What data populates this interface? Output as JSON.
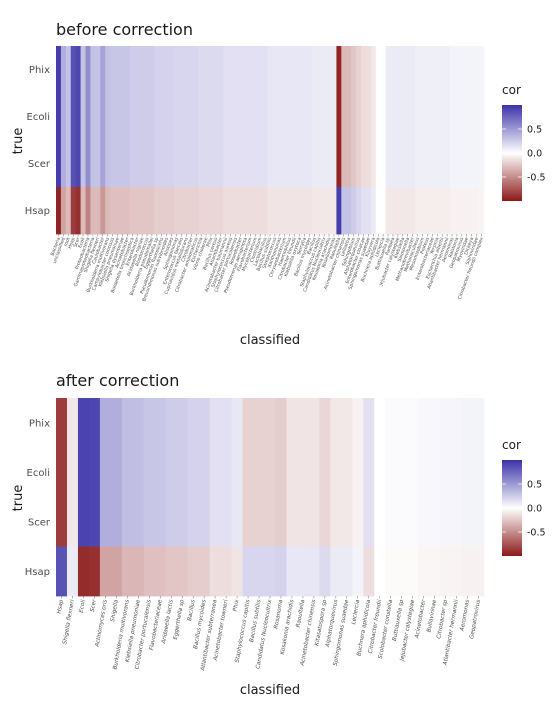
{
  "chart_data": [
    {
      "type": "heatmap",
      "title": "before correction",
      "xlabel": "classified",
      "ylabel": "true",
      "rows": [
        "Phix",
        "Ecoli",
        "Scer",
        "Hsap"
      ],
      "columns": [
        "Bacteria",
        "unclassified",
        "root",
        "Hsap",
        "Scer",
        "Ecoli",
        "Proteobacteria",
        "Gammaproteobacteria",
        "Shigella flexneri",
        "Caulobacter",
        "Burkholderia multivorans",
        "Campylobacter concisus",
        "Klebsiella pneumoniae",
        "Shigella dysenteriae",
        "Acinetobacter",
        "Bordetella bronchiseptica",
        "Enterobacter",
        "Acidaeella nigriae",
        "Rhodococcus",
        "Burkholderia pseudomallei",
        "Eggerthella sp",
        "Pseudomonas fluorescens",
        "Brevundimonas subvibrioides",
        "Alistipes",
        "Sphingomonas",
        "Enterococcus faecalis",
        "Cupriavidus metallidurans",
        "Citrobacter",
        "Citrobacter amalonaticus",
        "Escherichia",
        "Vibrio cholerae",
        "Phix",
        "Bacillus cereus",
        "Atlantibacter",
        "Acinetobacter baumannii",
        "Staphylococcus aureus",
        "Citrobacter portucalensis",
        "Roseobacter",
        "Pseudomonas aeruginosa",
        "Flavobacterium",
        "Mycobacterium",
        "Clostridium",
        "Lactobacillus",
        "Bacillus subtilis",
        "Streptococcus",
        "Xanthomonas",
        "Chryseobacterium",
        "Haemophilus",
        "Citrobacter freundii",
        "Klebsiella oxytoca",
        "Serratia",
        "Bacillus mycoides",
        "Bacillus",
        "Staphylococcus capitis",
        "Candidatus Nucleocultrix",
        "Kosakonia arachidis",
        "Rosellomonas",
        "Raoultella",
        "Acinetobacter chinensis",
        "Lelliottia",
        "Sphingobium",
        "Alphatorquevirus",
        "Enterobacter cloacae",
        "Sphingomonas suaedae",
        "Kluyvera",
        "Buchnera aphidicola",
        "Leclercia",
        "Buttiauxella sp",
        "Pantoea",
        "Jejubacter calystegiae",
        "Klebsiella",
        "Salmonella",
        "Methanobrevibacter",
        "Methanoculleus",
        "Mesorhizobium",
        "Proteus",
        "Enterobacteriaceae",
        "Yersinia",
        "Escherichia albertii",
        "Atlantibacter hermannii",
        "Aeromonas",
        "Ralstonia",
        "Geopatrovirus",
        "Myoviridae",
        "Dickeya",
        "Siphoviridae",
        "Citrobacter freundii complex"
      ],
      "values_note": "correlation per column; row profile shared by Phix, Ecoli, Scer",
      "top_rows_values": [
        0.95,
        0.4,
        0.3,
        0.85,
        0.9,
        0.3,
        0.55,
        0.3,
        0.3,
        0.45,
        0.3,
        0.28,
        0.28,
        0.28,
        0.28,
        0.25,
        0.25,
        0.25,
        0.25,
        0.25,
        0.22,
        0.22,
        0.22,
        0.22,
        0.2,
        0.2,
        0.2,
        0.2,
        0.2,
        0.18,
        0.18,
        0.18,
        0.18,
        0.18,
        0.15,
        0.15,
        0.15,
        0.15,
        0.15,
        0.15,
        0.15,
        0.15,
        0.15,
        0.12,
        0.12,
        0.12,
        0.12,
        0.12,
        0.12,
        0.12,
        0.12,
        0.12,
        0.1,
        0.1,
        0.1,
        0.1,
        0.1,
        -0.95,
        -0.3,
        -0.3,
        -0.25,
        -0.2,
        -0.15,
        -0.15,
        -0.1,
        0.0,
        0.0,
        0.1,
        0.1,
        0.1,
        0.1,
        0.1,
        0.1,
        0.08,
        0.08,
        0.08,
        0.08,
        0.08,
        0.08,
        0.08,
        0.06,
        0.06,
        0.06,
        0.06,
        0.06,
        0.06,
        0.05
      ],
      "hsap_values": [
        -0.95,
        -0.4,
        -0.3,
        -0.85,
        -0.9,
        -0.3,
        -0.55,
        -0.3,
        -0.3,
        -0.45,
        -0.3,
        -0.28,
        -0.28,
        -0.28,
        -0.28,
        -0.25,
        -0.25,
        -0.25,
        -0.25,
        -0.25,
        -0.22,
        -0.22,
        -0.22,
        -0.22,
        -0.2,
        -0.2,
        -0.2,
        -0.2,
        -0.2,
        -0.18,
        -0.18,
        -0.18,
        -0.18,
        -0.18,
        -0.15,
        -0.15,
        -0.15,
        -0.15,
        -0.15,
        -0.15,
        -0.15,
        -0.15,
        -0.15,
        -0.12,
        -0.12,
        -0.12,
        -0.12,
        -0.12,
        -0.12,
        -0.12,
        -0.12,
        -0.12,
        -0.1,
        -0.1,
        -0.1,
        -0.1,
        -0.1,
        0.95,
        0.3,
        0.3,
        0.25,
        0.2,
        0.15,
        0.15,
        0.1,
        0.0,
        0.0,
        -0.1,
        -0.1,
        -0.1,
        -0.1,
        -0.1,
        -0.1,
        -0.08,
        -0.08,
        -0.08,
        -0.08,
        -0.08,
        -0.08,
        -0.08,
        -0.06,
        -0.06,
        -0.06,
        -0.06,
        -0.06,
        -0.06,
        -0.05
      ],
      "legend": {
        "title": "cor",
        "ticks": [
          0.5,
          0.0,
          -0.5
        ],
        "tick_labels": [
          "0.5",
          "0.0",
          "-0.5"
        ],
        "range": [
          -1,
          1
        ],
        "position": "right"
      },
      "colors": {
        "low": "#8b1a1a",
        "mid": "#ffffff",
        "high": "#3b33a8"
      }
    },
    {
      "type": "heatmap",
      "title": "after correction",
      "xlabel": "classified",
      "ylabel": "true",
      "rows": [
        "Phix",
        "Ecoli",
        "Scer",
        "Hsap"
      ],
      "columns": [
        "Hsap",
        "Shigella flexneri",
        "Ecoli",
        "Scer",
        "Actinomyces oris",
        "Shigella",
        "Burkholderia multivorans",
        "Klebsiella pneumoniae",
        "Citrobacter portucalensis",
        "Flavobacteriaceae",
        "Aridaeella lactis",
        "Eggerthella sp",
        "Bacillus",
        "Bacillus mycoides",
        "Atlantibacter subterranea",
        "Acinetobacter towneri",
        "Phix",
        "Staphylococcus capitis",
        "Bacillus subtilis",
        "Candidatus Nucleocultrix",
        "Rosanoma",
        "Kosakonia arachidis",
        "Raoultella",
        "Acinetobacter chinensis",
        "Kitasatospora sp",
        "Alphatorquevirus",
        "Sphingomonas suaedae",
        "Leclercia",
        "Buchnera aphidicola",
        "Citrobacter freundii",
        "Scolobacter constella",
        "Buttiauxella sp",
        "Jejubacter calystegiae",
        "Acinetobacter",
        "Bullavirinae",
        "Citrobacter sp",
        "Atlantibacter hermannii",
        "Aeromonas",
        "Geopatrovirus"
      ],
      "top_rows_values": [
        -0.85,
        -0.1,
        0.92,
        0.9,
        0.4,
        0.4,
        0.32,
        0.32,
        0.28,
        0.28,
        0.25,
        0.25,
        0.22,
        0.22,
        0.15,
        0.15,
        0.12,
        -0.2,
        -0.2,
        -0.2,
        -0.22,
        -0.12,
        -0.12,
        -0.12,
        -0.18,
        -0.1,
        -0.1,
        -0.06,
        0.15,
        0.0,
        0.02,
        0.02,
        0.02,
        0.04,
        0.04,
        0.05,
        0.05,
        0.06,
        0.06
      ],
      "hsap_values": [
        0.85,
        0.1,
        -0.92,
        -0.9,
        -0.4,
        -0.4,
        -0.32,
        -0.32,
        -0.28,
        -0.28,
        -0.25,
        -0.25,
        -0.22,
        -0.22,
        -0.15,
        -0.15,
        -0.12,
        0.2,
        0.2,
        0.2,
        0.22,
        0.12,
        0.12,
        0.12,
        0.18,
        0.1,
        0.1,
        0.06,
        -0.15,
        0.0,
        -0.02,
        -0.02,
        -0.02,
        -0.04,
        -0.04,
        -0.05,
        -0.05,
        -0.06,
        -0.06
      ],
      "legend": {
        "title": "cor",
        "ticks": [
          0.5,
          0.0,
          -0.5
        ],
        "tick_labels": [
          "0.5",
          "0.0",
          "-0.5"
        ],
        "range": [
          -1,
          1
        ],
        "position": "right"
      },
      "colors": {
        "low": "#8b1a1a",
        "mid": "#ffffff",
        "high": "#3b33a8"
      }
    }
  ]
}
